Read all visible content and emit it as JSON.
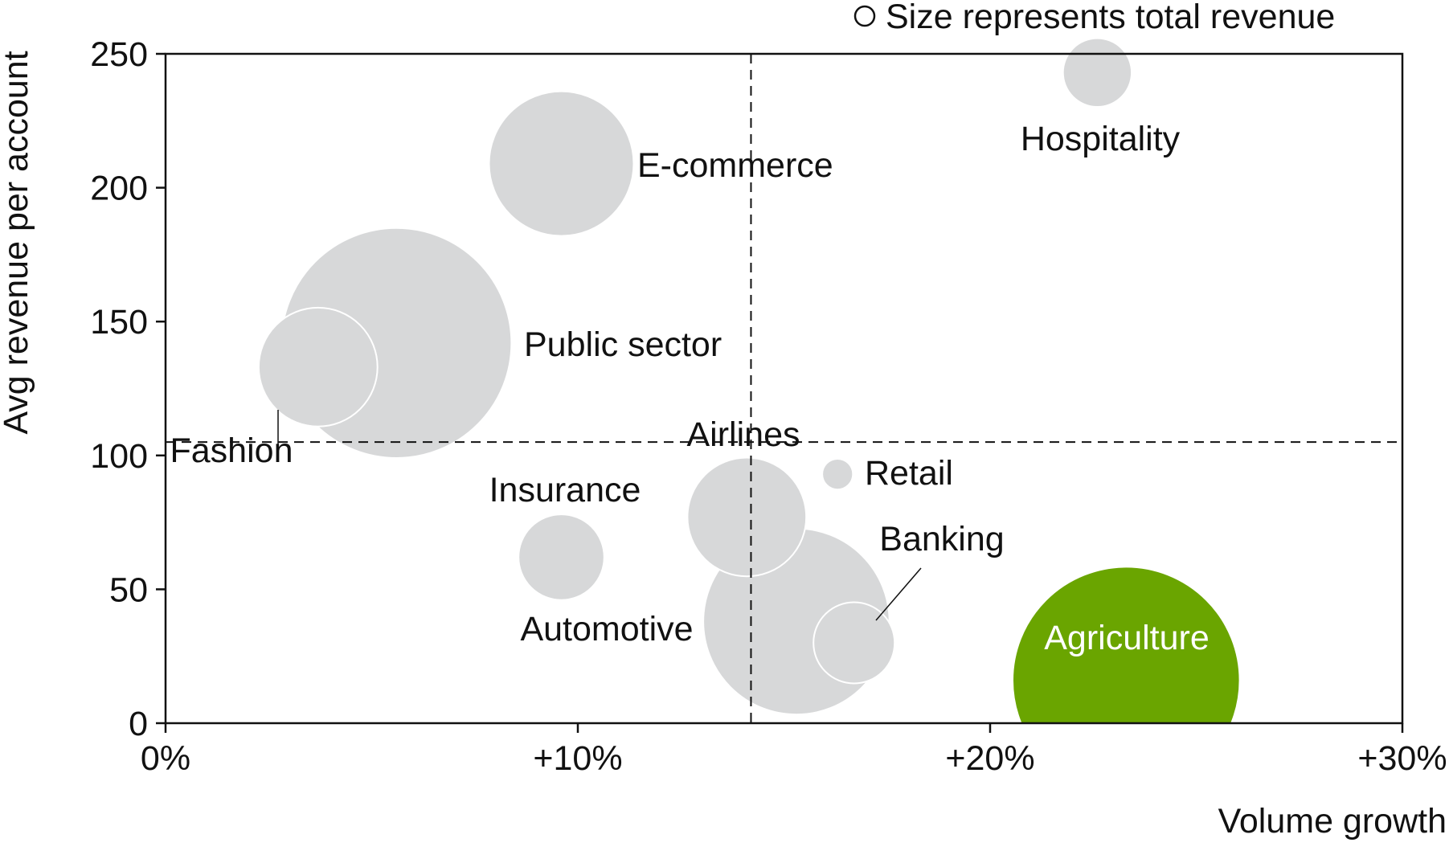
{
  "chart_data": {
    "type": "scatter",
    "subtype": "bubble",
    "title": "",
    "xlabel": "Volume growth",
    "ylabel": "Avg revenue per account",
    "xlim": [
      0,
      30
    ],
    "ylim": [
      0,
      250
    ],
    "x_ticks": [
      {
        "value": 0,
        "label": "0%"
      },
      {
        "value": 10,
        "label": "+10%"
      },
      {
        "value": 20,
        "label": "+20%"
      },
      {
        "value": 30,
        "label": "+30%"
      }
    ],
    "y_ticks": [
      {
        "value": 0,
        "label": "0"
      },
      {
        "value": 50,
        "label": "50"
      },
      {
        "value": 100,
        "label": "100"
      },
      {
        "value": 150,
        "label": "150"
      },
      {
        "value": 200,
        "label": "200"
      },
      {
        "value": 250,
        "label": "250"
      }
    ],
    "legend": {
      "text": "Size represents total revenue",
      "position": "top-right"
    },
    "reference_lines": {
      "x": 14.2,
      "y": 105
    },
    "grid": false,
    "colors": {
      "default": "#d7d8d9",
      "highlight": "#6aa500",
      "outline": "#ffffff",
      "axis": "#111111"
    },
    "points": [
      {
        "name": "Public sector",
        "x": 5.6,
        "y": 142,
        "size": 28.1,
        "highlight": false
      },
      {
        "name": "E-commerce",
        "x": 9.6,
        "y": 209,
        "size": 11.1,
        "highlight": false
      },
      {
        "name": "Hospitality",
        "x": 22.6,
        "y": 243,
        "size": 2.5,
        "highlight": false
      },
      {
        "name": "Fashion",
        "x": 3.7,
        "y": 133,
        "size": 7.5,
        "highlight": false
      },
      {
        "name": "Insurance",
        "x": 9.6,
        "y": 62,
        "size": 3.9,
        "highlight": false
      },
      {
        "name": "Airlines",
        "x": 14.1,
        "y": 77,
        "size": 7.5,
        "highlight": false
      },
      {
        "name": "Automotive",
        "x": 15.3,
        "y": 38,
        "size": 18.4,
        "highlight": false
      },
      {
        "name": "Retail",
        "x": 16.3,
        "y": 93,
        "size": 0.5,
        "highlight": false
      },
      {
        "name": "Banking",
        "x": 16.7,
        "y": 30,
        "size": 3.5,
        "highlight": false
      },
      {
        "name": "Agriculture",
        "x": 23.3,
        "y": 16,
        "size": 27.4,
        "highlight": true
      }
    ]
  }
}
